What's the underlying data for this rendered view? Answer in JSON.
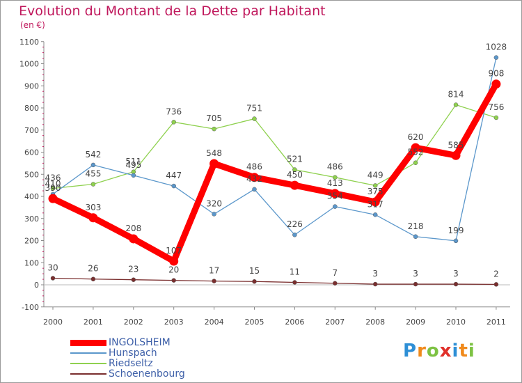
{
  "title": "Evolution du Montant de la Dette par Habitant",
  "subtitle": "(en €)",
  "logo_text": "Proxiti",
  "chart_data": {
    "type": "line",
    "title": "Evolution du Montant de la Dette par Habitant",
    "subtitle": "(en €)",
    "x": [
      "2000",
      "2001",
      "2002",
      "2003",
      "2004",
      "2005",
      "2006",
      "2007",
      "2008",
      "2009",
      "2010",
      "2011"
    ],
    "ylim": [
      -100,
      1100
    ],
    "yticks": [
      "-100",
      "0",
      "100",
      "200",
      "300",
      "400",
      "500",
      "600",
      "700",
      "800",
      "900",
      "1000",
      "1100"
    ],
    "grid": false,
    "legend_position": "bottom-left",
    "series": [
      {
        "name": "INGOLSHEIM",
        "color": "#ff0000",
        "values": [
          390,
          303,
          208,
          107,
          548,
          486,
          450,
          413,
          375,
          620,
          585,
          908
        ],
        "labels": [
          "390",
          "303",
          "208",
          "107",
          "548",
          "486",
          "450",
          "413",
          "375",
          "620",
          "585",
          "908"
        ]
      },
      {
        "name": "Hunspach",
        "color": "#5b97cb",
        "values": [
          410,
          542,
          495,
          447,
          320,
          432,
          226,
          354,
          317,
          218,
          199,
          1028
        ],
        "labels": [
          "410",
          "542",
          "495",
          "447",
          "320",
          "432",
          "226",
          "354",
          "317",
          "218",
          "199",
          "1028"
        ]
      },
      {
        "name": "Riedseltz",
        "color": "#8fd14f",
        "values": [
          436,
          455,
          511,
          736,
          705,
          751,
          521,
          486,
          449,
          552,
          814,
          756
        ],
        "labels": [
          "436",
          "455",
          "511",
          "736",
          "705",
          "751",
          "521",
          "486",
          "449",
          "552",
          "814",
          "756"
        ]
      },
      {
        "name": "Schoenenbourg",
        "color": "#7a2e2e",
        "values": [
          30,
          26,
          23,
          20,
          17,
          15,
          11,
          7,
          3,
          3,
          3,
          2
        ],
        "labels": [
          "30",
          "26",
          "23",
          "20",
          "17",
          "15",
          "11",
          "7",
          "3",
          "3",
          "3",
          "2"
        ]
      }
    ]
  }
}
